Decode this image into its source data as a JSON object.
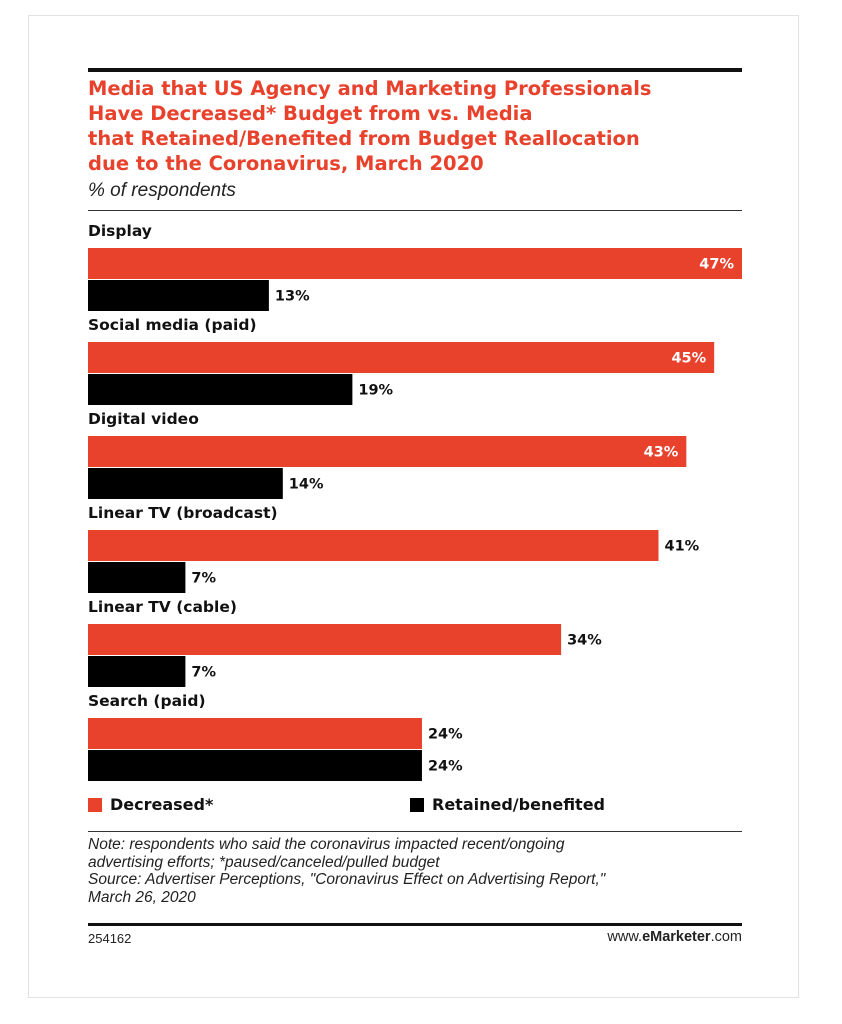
{
  "header": {
    "title_lines": [
      "Media that US Agency and Marketing Professionals",
      "Have Decreased* Budget from vs. Media",
      "that Retained/Benefited from Budget Reallocation",
      "due to the Coronavirus, March 2020"
    ],
    "subtitle": "% of respondents"
  },
  "colors": {
    "decreased": "#e8412c",
    "retained": "#000000",
    "title": "#e8412c"
  },
  "legend": {
    "decreased": "Decreased*",
    "retained": "Retained/benefited"
  },
  "chart_data": {
    "type": "bar",
    "orientation": "horizontal",
    "title": "Media that US Agency and Marketing Professionals Have Decreased* Budget from vs. Media that Retained/Benefited from Budget Reallocation due to the Coronavirus, March 2020",
    "subtitle": "% of respondents",
    "categories": [
      "Display",
      "Social media (paid)",
      "Digital video",
      "Linear TV (broadcast)",
      "Linear TV (cable)",
      "Search (paid)"
    ],
    "series": [
      {
        "name": "Decreased*",
        "values": [
          47,
          45,
          43,
          41,
          34,
          24
        ],
        "color": "#e8412c"
      },
      {
        "name": "Retained/benefited",
        "values": [
          13,
          19,
          14,
          7,
          7,
          24
        ],
        "color": "#000000"
      }
    ],
    "value_suffix": "%",
    "xlim": [
      0,
      47
    ],
    "grid": false,
    "legend_position": "bottom"
  },
  "footer": {
    "note_lines": [
      "Note: respondents who said the coronavirus impacted recent/ongoing",
      "advertising efforts; *paused/canceled/pulled budget",
      "Source: Advertiser Perceptions, \"Coronavirus Effect on Advertising Report,\"",
      "March 26, 2020"
    ],
    "chart_id": "254162",
    "brand_prefix": "www.",
    "brand_name": "eMarketer",
    "brand_suffix": ".com"
  }
}
